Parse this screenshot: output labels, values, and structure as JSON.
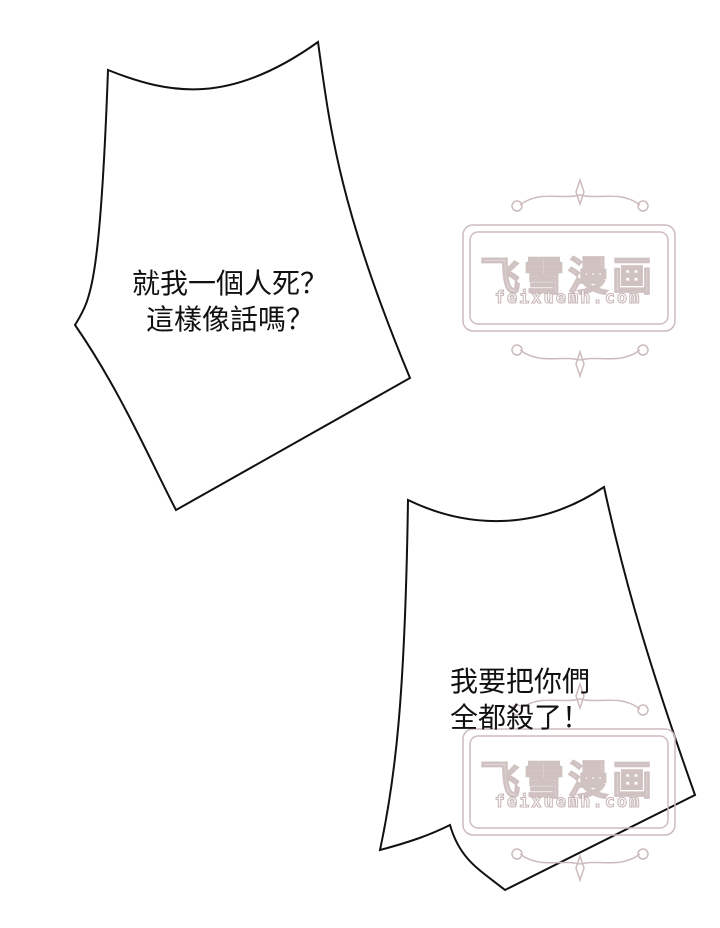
{
  "bubbles": [
    {
      "lines": [
        "就我一個人死？",
        "這樣像話嗎？"
      ]
    },
    {
      "lines": [
        "我要把你們",
        "全都殺了！"
      ]
    }
  ],
  "watermark": {
    "title": "飞雪漫画",
    "url": "feixuemh.com",
    "color": "#cdbcbc"
  }
}
